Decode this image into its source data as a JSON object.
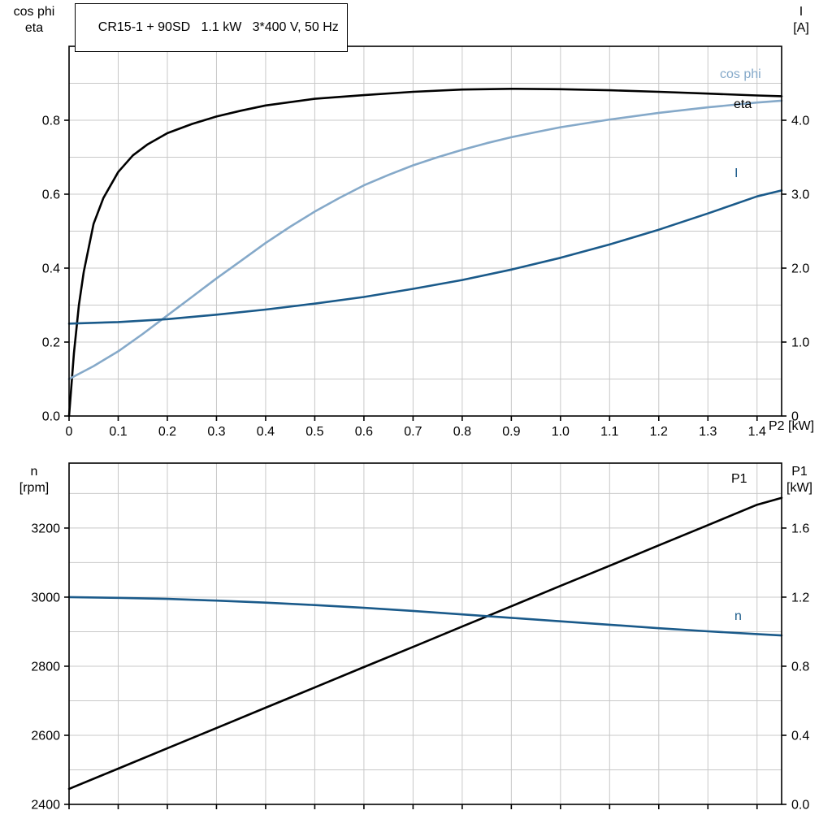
{
  "colors": {
    "eta": "#000000",
    "cos_phi": "#85a9c9",
    "current": "#1a5a8a",
    "p1": "#000000",
    "n": "#1a5a8a",
    "grid": "#c8c8c8",
    "axis": "#000000"
  },
  "chart_data": [
    {
      "type": "line",
      "title": "CR15-1 + 90SD   1.1 kW   3*400 V, 50 Hz",
      "x_axis": {
        "label": "P2 [kW]",
        "range": [
          0,
          1.45
        ],
        "grid_step": 0.1,
        "tick_values": [
          0,
          0.1,
          0.2,
          0.3,
          0.4,
          0.5,
          0.6,
          0.7,
          0.8,
          0.9,
          1.0,
          1.1,
          1.2,
          1.3,
          1.4
        ],
        "tick_labels": [
          "0",
          "0.1",
          "0.2",
          "0.3",
          "0.4",
          "0.5",
          "0.6",
          "0.7",
          "0.8",
          "0.9",
          "1.0",
          "1.1",
          "1.2",
          "1.3",
          "1.4"
        ]
      },
      "left_axis": {
        "label_lines": [
          "cos phi",
          "eta"
        ],
        "range": [
          0,
          1.0
        ],
        "grid_step": 0.1,
        "tick_values": [
          0,
          0.2,
          0.4,
          0.6,
          0.8
        ],
        "tick_labels": [
          "0.0",
          "0.2",
          "0.4",
          "0.6",
          "0.8"
        ]
      },
      "right_axis": {
        "label_lines": [
          "I",
          "[A]"
        ],
        "range": [
          0,
          5.0
        ],
        "tick_values": [
          0,
          1.0,
          2.0,
          3.0,
          4.0
        ],
        "tick_labels": [
          "0",
          "1.0",
          "2.0",
          "3.0",
          "4.0"
        ]
      },
      "series": [
        {
          "name": "eta",
          "axis": "left",
          "color": "#000000",
          "points": [
            [
              0,
              0
            ],
            [
              0.01,
              0.17
            ],
            [
              0.02,
              0.3
            ],
            [
              0.03,
              0.39
            ],
            [
              0.05,
              0.52
            ],
            [
              0.07,
              0.59
            ],
            [
              0.1,
              0.66
            ],
            [
              0.13,
              0.705
            ],
            [
              0.16,
              0.735
            ],
            [
              0.2,
              0.765
            ],
            [
              0.25,
              0.79
            ],
            [
              0.3,
              0.81
            ],
            [
              0.35,
              0.826
            ],
            [
              0.4,
              0.84
            ],
            [
              0.5,
              0.858
            ],
            [
              0.6,
              0.868
            ],
            [
              0.7,
              0.877
            ],
            [
              0.8,
              0.883
            ],
            [
              0.9,
              0.885
            ],
            [
              1.0,
              0.884
            ],
            [
              1.1,
              0.881
            ],
            [
              1.2,
              0.877
            ],
            [
              1.3,
              0.872
            ],
            [
              1.4,
              0.867
            ],
            [
              1.45,
              0.865
            ]
          ]
        },
        {
          "name": "cos phi",
          "axis": "left",
          "color": "#85a9c9",
          "points": [
            [
              0,
              0.1
            ],
            [
              0.05,
              0.135
            ],
            [
              0.1,
              0.175
            ],
            [
              0.15,
              0.222
            ],
            [
              0.2,
              0.272
            ],
            [
              0.25,
              0.322
            ],
            [
              0.3,
              0.372
            ],
            [
              0.35,
              0.42
            ],
            [
              0.4,
              0.468
            ],
            [
              0.45,
              0.512
            ],
            [
              0.5,
              0.553
            ],
            [
              0.55,
              0.59
            ],
            [
              0.6,
              0.624
            ],
            [
              0.65,
              0.652
            ],
            [
              0.7,
              0.678
            ],
            [
              0.75,
              0.7
            ],
            [
              0.8,
              0.72
            ],
            [
              0.85,
              0.738
            ],
            [
              0.9,
              0.754
            ],
            [
              0.95,
              0.768
            ],
            [
              1.0,
              0.781
            ],
            [
              1.1,
              0.802
            ],
            [
              1.2,
              0.82
            ],
            [
              1.3,
              0.835
            ],
            [
              1.4,
              0.848
            ],
            [
              1.45,
              0.853
            ]
          ]
        },
        {
          "name": "I",
          "axis": "right",
          "color": "#1a5a8a",
          "points": [
            [
              0,
              1.25
            ],
            [
              0.1,
              1.27
            ],
            [
              0.2,
              1.31
            ],
            [
              0.3,
              1.37
            ],
            [
              0.4,
              1.44
            ],
            [
              0.5,
              1.52
            ],
            [
              0.6,
              1.61
            ],
            [
              0.7,
              1.72
            ],
            [
              0.8,
              1.84
            ],
            [
              0.9,
              1.98
            ],
            [
              1.0,
              2.14
            ],
            [
              1.1,
              2.32
            ],
            [
              1.2,
              2.52
            ],
            [
              1.3,
              2.74
            ],
            [
              1.4,
              2.97
            ],
            [
              1.45,
              3.05
            ]
          ]
        }
      ]
    },
    {
      "type": "line",
      "title": "",
      "x_axis": {
        "label": "",
        "range": [
          0,
          1.45
        ],
        "grid_step": 0.1,
        "tick_values": [
          0,
          0.1,
          0.2,
          0.3,
          0.4,
          0.5,
          0.6,
          0.7,
          0.8,
          0.9,
          1.0,
          1.1,
          1.2,
          1.3,
          1.4
        ],
        "tick_labels": null
      },
      "left_axis": {
        "label_lines": [
          "n",
          "[rpm]"
        ],
        "range": [
          2400,
          3388
        ],
        "grid_step": 100,
        "tick_values": [
          2400,
          2600,
          2800,
          3000,
          3200
        ],
        "tick_labels": [
          "2400",
          "2600",
          "2800",
          "3000",
          "3200"
        ]
      },
      "right_axis": {
        "label_lines": [
          "P1",
          "[kW]"
        ],
        "range": [
          0,
          1.976
        ],
        "tick_values": [
          0,
          0.4,
          0.8,
          1.2,
          1.6
        ],
        "tick_labels": [
          "0.0",
          "0.4",
          "0.8",
          "1.2",
          "1.6"
        ]
      },
      "series": [
        {
          "name": "P1",
          "axis": "right",
          "color": "#000000",
          "points": [
            [
              0,
              0.09
            ],
            [
              0.1,
              0.207
            ],
            [
              0.2,
              0.325
            ],
            [
              0.3,
              0.442
            ],
            [
              0.4,
              0.56
            ],
            [
              0.5,
              0.677
            ],
            [
              0.6,
              0.795
            ],
            [
              0.7,
              0.912
            ],
            [
              0.8,
              1.03
            ],
            [
              0.9,
              1.147
            ],
            [
              1.0,
              1.265
            ],
            [
              1.1,
              1.382
            ],
            [
              1.2,
              1.5
            ],
            [
              1.3,
              1.617
            ],
            [
              1.4,
              1.735
            ],
            [
              1.45,
              1.775
            ]
          ]
        },
        {
          "name": "n",
          "axis": "left",
          "color": "#1a5a8a",
          "points": [
            [
              0,
              3000
            ],
            [
              0.1,
              2998
            ],
            [
              0.2,
              2995
            ],
            [
              0.3,
              2990
            ],
            [
              0.4,
              2984
            ],
            [
              0.5,
              2977
            ],
            [
              0.6,
              2969
            ],
            [
              0.7,
              2960
            ],
            [
              0.8,
              2950
            ],
            [
              0.9,
              2940
            ],
            [
              1.0,
              2930
            ],
            [
              1.1,
              2920
            ],
            [
              1.2,
              2910
            ],
            [
              1.3,
              2901
            ],
            [
              1.4,
              2893
            ],
            [
              1.45,
              2889
            ]
          ]
        }
      ]
    }
  ]
}
